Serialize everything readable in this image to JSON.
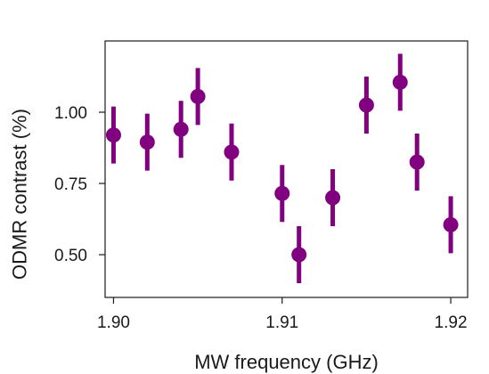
{
  "chart_data": {
    "type": "scatter",
    "title": "",
    "xlabel": "MW frequency (GHz)",
    "ylabel": "ODMR contrast (%)",
    "xlim": [
      1.8995,
      1.921
    ],
    "ylim": [
      0.35,
      1.25
    ],
    "xticks": [
      1.9,
      1.91,
      1.92
    ],
    "xtick_labels": [
      "1.90",
      "1.91",
      "1.92"
    ],
    "yticks": [
      0.5,
      0.75,
      1.0
    ],
    "ytick_labels": [
      "0.50",
      "0.75",
      "1.00"
    ],
    "grid": false,
    "legend": "none",
    "marker_color": "#800080",
    "series": [
      {
        "x": [
          1.9,
          1.902,
          1.904,
          1.905,
          1.907,
          1.91,
          1.911,
          1.913,
          1.915,
          1.917,
          1.918,
          1.92
        ],
        "y": [
          0.92,
          0.895,
          0.94,
          1.055,
          0.86,
          0.715,
          0.5,
          0.7,
          1.025,
          1.105,
          0.825,
          0.605
        ],
        "err": [
          0.1,
          0.1,
          0.1,
          0.1,
          0.1,
          0.1,
          0.1,
          0.1,
          0.1,
          0.1,
          0.1,
          0.1
        ]
      }
    ]
  }
}
